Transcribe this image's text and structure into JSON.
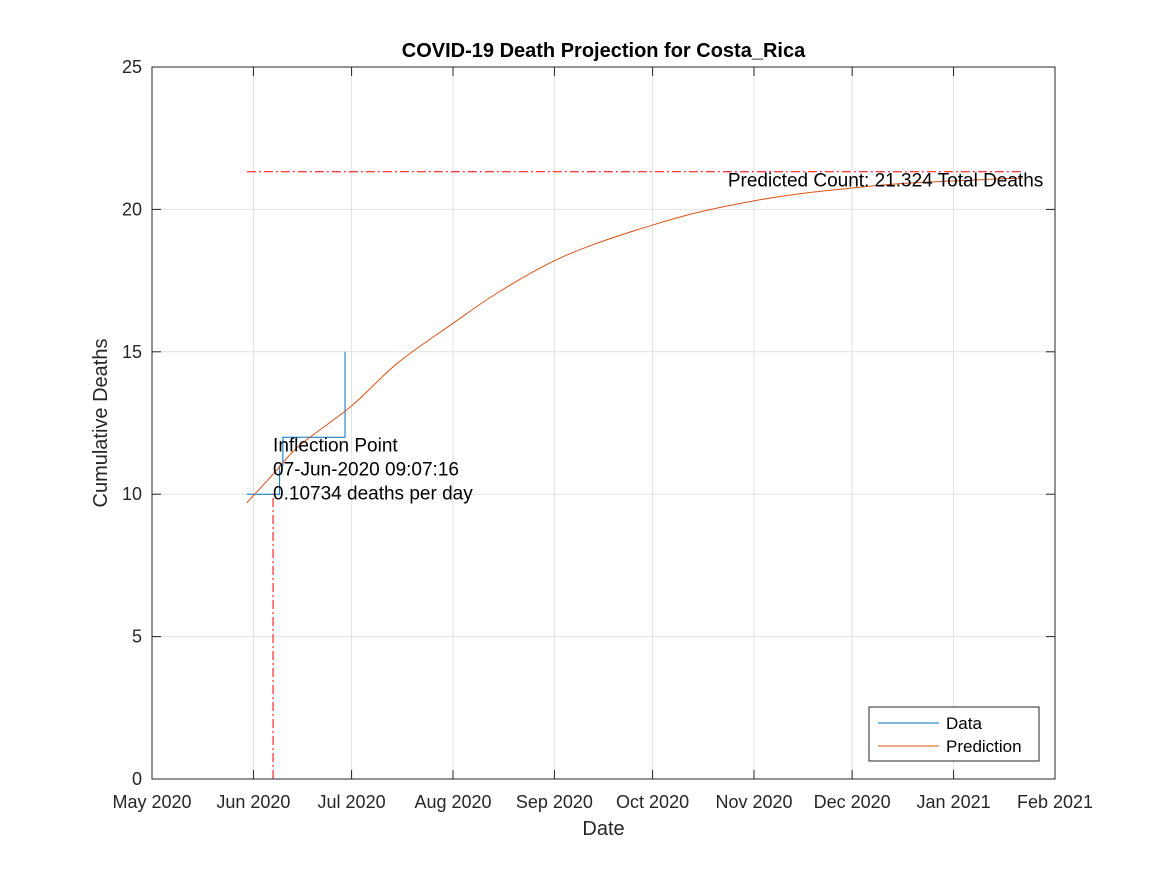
{
  "chart_data": {
    "type": "line",
    "title": "COVID-19 Death Projection for Costa_Rica",
    "xlabel": "Date",
    "ylabel": "Cumulative Deaths",
    "xlim": [
      "2020-05-01",
      "2021-02-01"
    ],
    "ylim": [
      0,
      25
    ],
    "x_ticks": [
      "2020-05-01",
      "2020-06-01",
      "2020-07-01",
      "2020-08-01",
      "2020-09-01",
      "2020-10-01",
      "2020-11-01",
      "2020-12-01",
      "2021-01-01",
      "2021-02-01"
    ],
    "x_tick_labels": [
      "May 2020",
      "Jun 2020",
      "Jul 2020",
      "Aug 2020",
      "Sep 2020",
      "Oct 2020",
      "Nov 2020",
      "Dec 2020",
      "Jan 2021",
      "Feb 2021"
    ],
    "y_ticks": [
      0,
      5,
      10,
      15,
      20,
      25
    ],
    "y_tick_labels": [
      "0",
      "5",
      "10",
      "15",
      "20",
      "25"
    ],
    "grid": true,
    "legend_position": "bottom-right",
    "series": [
      {
        "name": "Data",
        "color": "#0072BD",
        "style": "step",
        "x": [
          "2020-05-30",
          "2020-06-01",
          "2020-06-08",
          "2020-06-09",
          "2020-06-10",
          "2020-06-11",
          "2020-06-15",
          "2020-06-20",
          "2020-06-25",
          "2020-06-28",
          "2020-06-29"
        ],
        "y": [
          10,
          10,
          10,
          11,
          12,
          12,
          12,
          12,
          12,
          12,
          15
        ]
      },
      {
        "name": "Prediction",
        "color": "#D95319",
        "style": "line",
        "x": [
          "2020-05-30",
          "2020-06-07",
          "2020-06-15",
          "2020-07-01",
          "2020-07-15",
          "2020-08-01",
          "2020-08-15",
          "2020-09-01",
          "2020-09-15",
          "2020-10-01",
          "2020-10-15",
          "2020-11-01",
          "2020-11-15",
          "2020-12-01",
          "2020-12-15",
          "2021-01-01",
          "2021-01-15",
          "2021-01-22"
        ],
        "y": [
          9.7,
          10.7,
          11.7,
          13.1,
          14.6,
          16.0,
          17.1,
          18.2,
          18.85,
          19.45,
          19.9,
          20.3,
          20.55,
          20.75,
          20.9,
          21.0,
          21.07,
          21.1
        ]
      }
    ],
    "reference_lines": [
      {
        "orientation": "horizontal",
        "y": 21.324,
        "x_start": "2020-05-30",
        "x_end": "2021-01-22",
        "color": "#FF0000",
        "style": "dashdot"
      },
      {
        "orientation": "vertical",
        "x": "2020-06-07",
        "y_start": 0,
        "y_end": 10,
        "color": "#FF0000",
        "style": "dashdot"
      }
    ],
    "annotations": [
      {
        "lines": [
          "Inflection Point",
          "07-Jun-2020 09:07:16",
          "0.10734 deaths per day"
        ],
        "x": "2020-06-07",
        "y": 11.5
      },
      {
        "lines": [
          "Predicted Count: 21.324 Total Deaths"
        ],
        "x": "2020-10-24",
        "y": 20.8
      }
    ]
  }
}
